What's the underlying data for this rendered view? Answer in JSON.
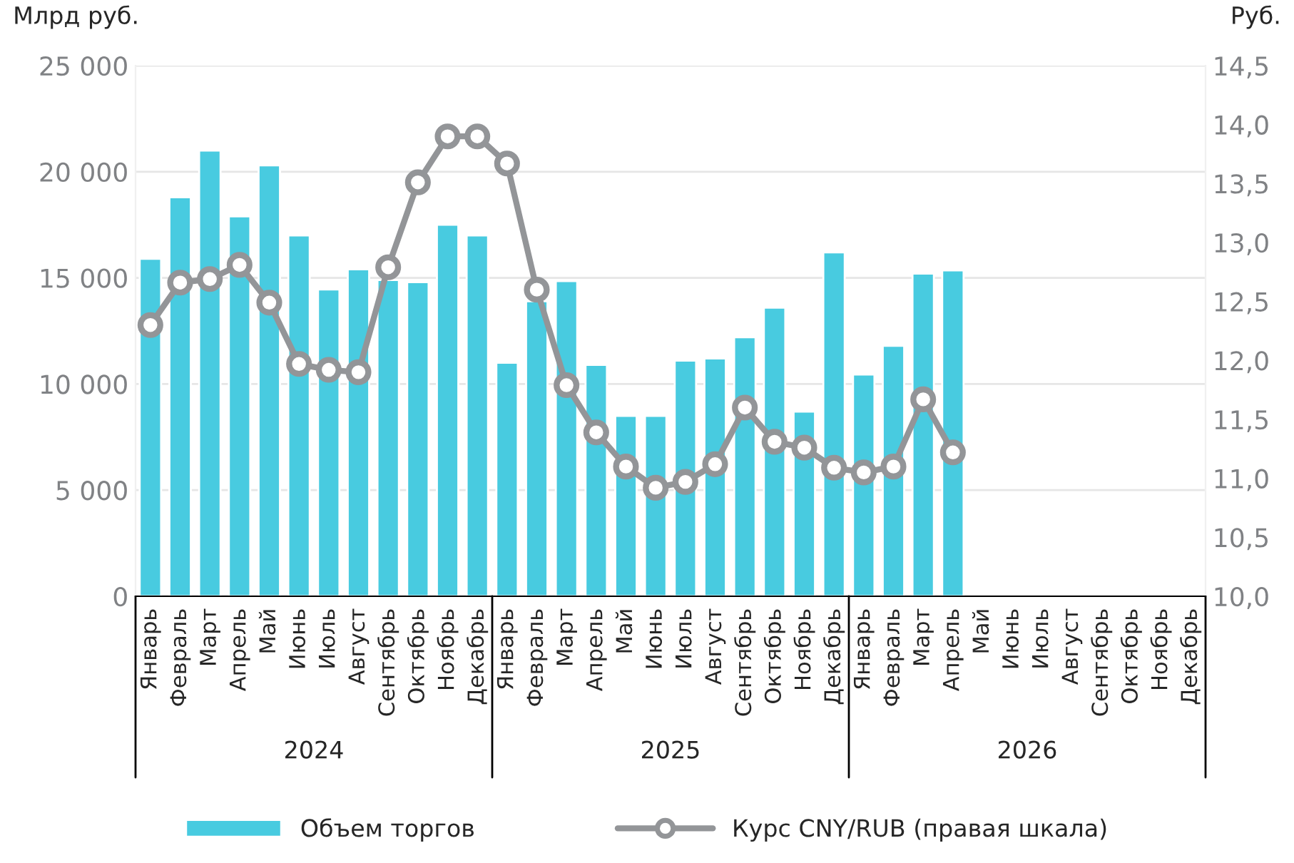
{
  "chart_data": {
    "type": "bar",
    "ylabel": "Млрд руб.",
    "y2label": "Руб.",
    "categories": [
      "Январь",
      "Февраль",
      "Март",
      "Апрель",
      "Май",
      "Июнь",
      "Июль",
      "Август",
      "Сентябрь",
      "Октябрь",
      "Ноябрь",
      "Декабрь",
      "Январь",
      "Февраль",
      "Март",
      "Апрель",
      "Май",
      "Июнь",
      "Июль",
      "Август",
      "Сентябрь",
      "Октябрь",
      "Ноябрь",
      "Декабрь",
      "Январь",
      "Февраль",
      "Март",
      "Апрель",
      "Май",
      "Июнь",
      "Июль",
      "Август",
      "Сентябрь",
      "Октябрь",
      "Ноябрь",
      "Декабрь"
    ],
    "series": [
      {
        "name": "Объем торгов",
        "type": "bar",
        "color": "#48cbe0",
        "values": [
          15900,
          18800,
          21000,
          17900,
          20300,
          17000,
          14450,
          15400,
          14900,
          14800,
          17500,
          17000,
          11000,
          13900,
          14850,
          10900,
          8500,
          8500,
          11100,
          11200,
          12200,
          13600,
          8700,
          16200,
          10450,
          11800,
          15200,
          15350,
          null,
          null,
          null,
          null,
          null,
          null,
          null,
          null
        ]
      },
      {
        "name": "Курс CNY/RUB (правая шкала)",
        "type": "line",
        "axis": "y2",
        "color": "#939598",
        "marker": "circle",
        "line_style": "solid",
        "values": [
          12.3,
          12.66,
          12.69,
          12.81,
          12.49,
          11.97,
          11.92,
          11.9,
          12.79,
          13.51,
          13.9,
          13.9,
          13.67,
          12.6,
          11.79,
          11.39,
          11.1,
          10.92,
          10.97,
          11.12,
          11.6,
          11.31,
          11.26,
          11.09,
          11.05,
          11.1,
          11.67,
          11.22,
          null,
          null,
          null,
          null,
          null,
          null,
          null,
          null
        ]
      }
    ],
    "ylim": [
      0,
      25000
    ],
    "yticks": [
      0,
      {
        "value": 5000,
        "label": "5 000"
      },
      {
        "value": 10000,
        "label": "10 000"
      },
      {
        "value": 15000,
        "label": "15 000"
      },
      {
        "value": 20000,
        "label": "20 000"
      },
      {
        "value": 25000,
        "label": "25 000"
      }
    ],
    "y2lim": [
      10,
      14.5
    ],
    "y2ticks": [
      {
        "value": 10,
        "label": "10,0"
      },
      {
        "value": 10.5,
        "label": "10,5"
      },
      {
        "value": 11,
        "label": "11,0"
      },
      {
        "value": 11.5,
        "label": "11,5"
      },
      {
        "value": 12,
        "label": "12,0"
      },
      {
        "value": 12.5,
        "label": "12,5"
      },
      {
        "value": 13,
        "label": "13,0"
      },
      {
        "value": 13.5,
        "label": "13,5"
      },
      {
        "value": 14,
        "label": "14,0"
      },
      {
        "value": 14.5,
        "label": "14,5"
      }
    ],
    "annotations": [
      "2024",
      "2025",
      "2026"
    ],
    "grid": "y",
    "legend": "bottom"
  }
}
